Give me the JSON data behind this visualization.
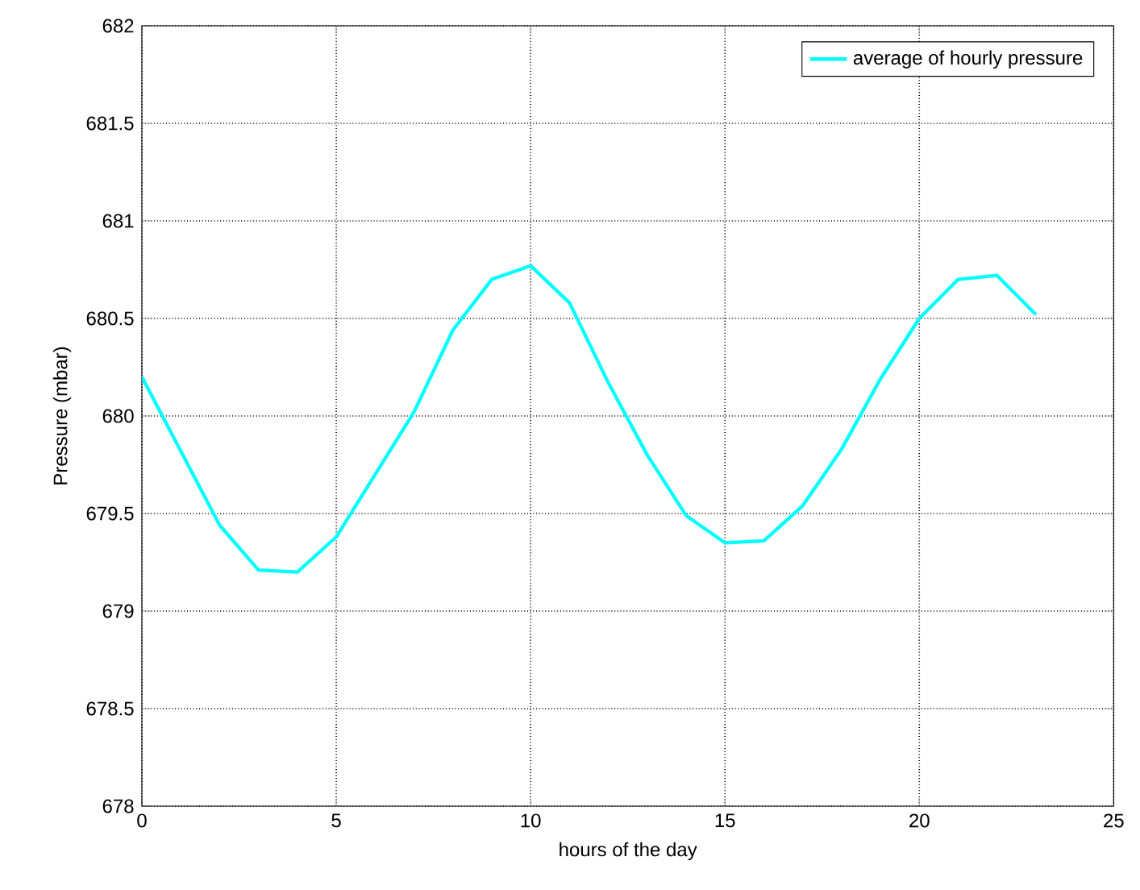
{
  "chart_data": {
    "type": "line",
    "xlabel": "hours of the day",
    "ylabel": "Pressure (mbar)",
    "x": [
      0,
      1,
      2,
      3,
      4,
      5,
      6,
      7,
      8,
      9,
      10,
      11,
      12,
      13,
      14,
      15,
      16,
      17,
      18,
      19,
      20,
      21,
      22,
      23
    ],
    "series": [
      {
        "name": "average of hourly pressure",
        "color": "#00ffff",
        "values": [
          680.2,
          679.82,
          679.44,
          679.21,
          679.2,
          679.38,
          679.7,
          680.02,
          680.44,
          680.7,
          680.77,
          680.58,
          680.17,
          679.8,
          679.49,
          679.35,
          679.36,
          679.54,
          679.83,
          680.19,
          680.5,
          680.7,
          680.72,
          680.52
        ]
      }
    ],
    "xlim": [
      0,
      25
    ],
    "ylim": [
      678,
      682
    ],
    "xticks": [
      0,
      5,
      10,
      15,
      20,
      25
    ],
    "yticks": [
      678,
      678.5,
      679,
      679.5,
      680,
      680.5,
      681,
      681.5,
      682
    ],
    "grid": true,
    "legend": "top right",
    "marker": "none",
    "line_style": "solid"
  }
}
